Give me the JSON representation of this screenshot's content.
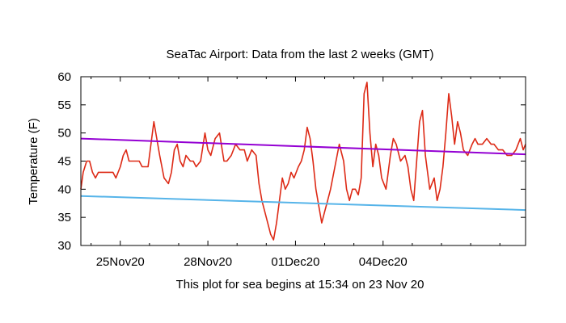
{
  "chart_data": {
    "type": "line",
    "title": "SeaTac Airport:  Data from the last 2 weeks (GMT)",
    "xlabel": "This plot for sea begins at 15:34 on 23 Nov 20",
    "ylabel": "Temperature (F)",
    "ylim": [
      30,
      60
    ],
    "yticks": [
      30,
      35,
      40,
      45,
      50,
      55,
      60
    ],
    "xlim_days": [
      0,
      15.23
    ],
    "xticks": [
      {
        "day": 1.35,
        "label": "25Nov20"
      },
      {
        "day": 4.35,
        "label": "28Nov20"
      },
      {
        "day": 7.35,
        "label": "01Dec20"
      },
      {
        "day": 10.35,
        "label": "04Dec20"
      }
    ],
    "minor_tick_days": [
      0.35,
      2.35,
      3.35,
      5.35,
      6.35,
      8.35,
      9.35,
      11.35,
      12.35,
      13.35,
      14.35
    ],
    "grid": false,
    "series": [
      {
        "name": "observed temperature",
        "color": "#dd2a16",
        "x": [
          0,
          0.08,
          0.2,
          0.3,
          0.4,
          0.5,
          0.6,
          0.75,
          0.85,
          1.0,
          1.1,
          1.2,
          1.35,
          1.45,
          1.55,
          1.65,
          1.75,
          1.85,
          2.0,
          2.1,
          2.3,
          2.5,
          2.6,
          2.7,
          2.85,
          3.0,
          3.1,
          3.2,
          3.3,
          3.4,
          3.5,
          3.6,
          3.75,
          3.85,
          3.95,
          4.1,
          4.25,
          4.35,
          4.45,
          4.6,
          4.75,
          4.9,
          5.0,
          5.15,
          5.3,
          5.45,
          5.6,
          5.7,
          5.85,
          6.0,
          6.1,
          6.2,
          6.3,
          6.4,
          6.5,
          6.6,
          6.7,
          6.8,
          6.9,
          7.0,
          7.1,
          7.2,
          7.3,
          7.45,
          7.55,
          7.65,
          7.75,
          7.85,
          7.95,
          8.05,
          8.15,
          8.25,
          8.35,
          8.45,
          8.55,
          8.7,
          8.85,
          9.0,
          9.1,
          9.2,
          9.3,
          9.4,
          9.5,
          9.6,
          9.7,
          9.8,
          9.9,
          10.0,
          10.1,
          10.2,
          10.3,
          10.45,
          10.6,
          10.7,
          10.8,
          10.95,
          11.1,
          11.2,
          11.3,
          11.4,
          11.5,
          11.6,
          11.7,
          11.8,
          11.95,
          12.1,
          12.2,
          12.3,
          12.4,
          12.5,
          12.6,
          12.7,
          12.8,
          12.9,
          13.0,
          13.1,
          13.25,
          13.4,
          13.5,
          13.6,
          13.75,
          13.9,
          14.05,
          14.15,
          14.3,
          14.45,
          14.6,
          14.75,
          14.9,
          15.05,
          15.15,
          15.23
        ],
        "values": [
          40,
          43,
          45,
          45,
          43,
          42,
          43,
          43,
          43,
          43,
          43,
          42,
          44,
          46,
          47,
          45,
          45,
          45,
          45,
          44,
          44,
          52,
          49,
          46,
          42,
          41,
          43,
          47,
          48,
          45,
          44,
          46,
          45,
          45,
          44,
          45,
          50,
          47,
          46,
          49,
          50,
          45,
          45,
          46,
          48,
          47,
          47,
          45,
          47,
          46,
          41,
          38,
          36,
          34,
          32,
          31,
          34,
          38,
          42,
          40,
          41,
          43,
          42,
          44,
          45,
          47,
          51,
          49,
          45,
          40,
          37,
          34,
          36,
          38,
          40,
          44,
          48,
          45,
          40,
          38,
          40,
          40,
          39,
          42,
          57,
          59,
          50,
          44,
          48,
          46,
          42,
          40,
          46,
          49,
          48,
          45,
          46,
          44,
          40,
          38,
          45,
          52,
          54,
          46,
          40,
          42,
          38,
          40,
          44,
          50,
          57,
          53,
          48,
          52,
          50,
          47,
          46,
          48,
          49,
          48,
          48,
          49,
          48,
          48,
          47,
          47,
          46,
          46,
          47,
          49,
          47,
          48
        ]
      },
      {
        "name": "trend upper (purple)",
        "color": "#9400d3",
        "x": [
          0,
          15.23
        ],
        "values": [
          49.0,
          46.2
        ]
      },
      {
        "name": "trend lower (blue)",
        "color": "#56b4e9",
        "x": [
          0,
          15.23
        ],
        "values": [
          38.8,
          36.3
        ]
      }
    ]
  }
}
